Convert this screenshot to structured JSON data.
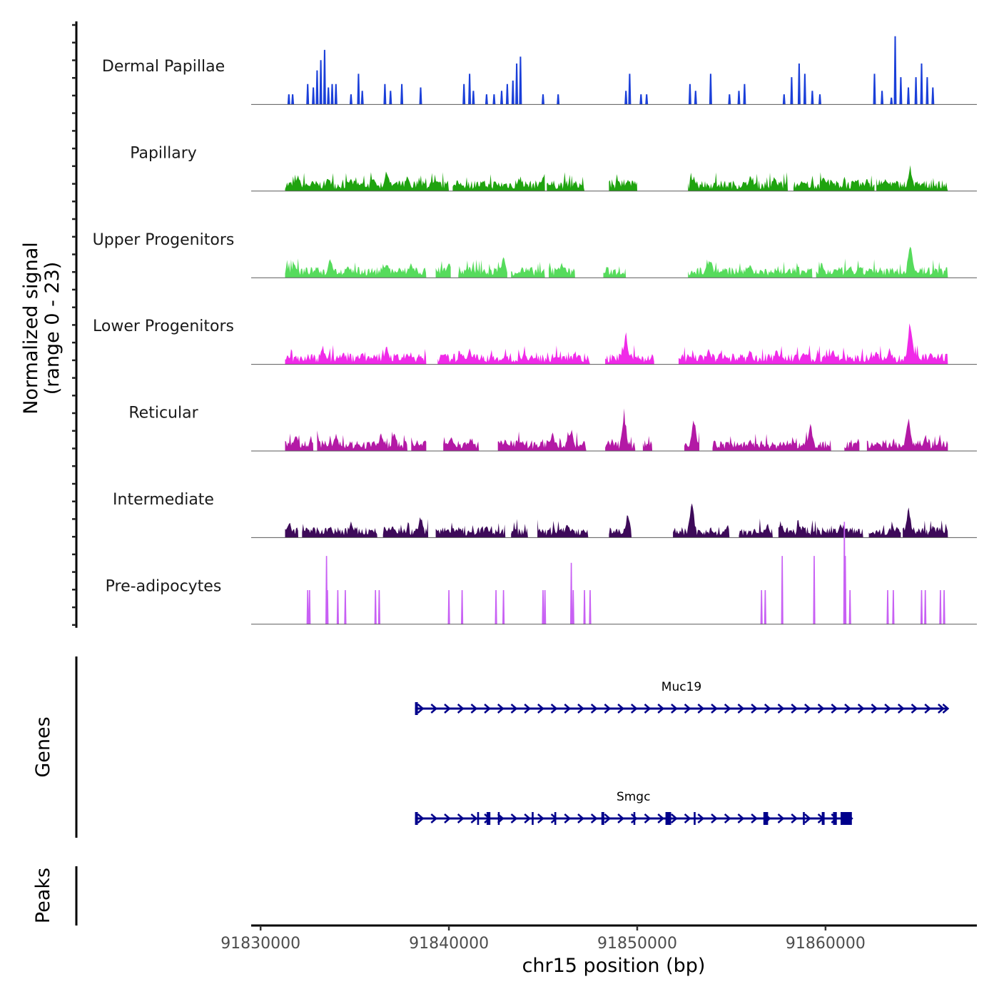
{
  "chart_data": {
    "type": "area",
    "chromosome": "chr15",
    "xlabel": "chr15 position (bp)",
    "ylabel_line1": "Normalized signal",
    "ylabel_line2": "(range 0 - 23)",
    "signal_range": [
      0,
      23
    ],
    "xlim": [
      91829500,
      91868000
    ],
    "x_ticks": [
      91830000,
      91840000,
      91850000,
      91860000
    ],
    "x_tick_labels": [
      "91830000",
      "91840000",
      "91850000",
      "91860000"
    ],
    "coverage_tracks": [
      {
        "name": "Dermal Papillae",
        "color": "#1a3fd9",
        "style": "spiky",
        "values": [
          [
            91831500,
            3
          ],
          [
            91831700,
            3
          ],
          [
            91832500,
            6
          ],
          [
            91832800,
            5
          ],
          [
            91833000,
            10
          ],
          [
            91833200,
            13
          ],
          [
            91833400,
            16
          ],
          [
            91833600,
            5
          ],
          [
            91833800,
            6
          ],
          [
            91834000,
            6
          ],
          [
            91834800,
            3
          ],
          [
            91835200,
            9
          ],
          [
            91835400,
            4
          ],
          [
            91836600,
            6
          ],
          [
            91836900,
            4
          ],
          [
            91837500,
            6
          ],
          [
            91838500,
            5
          ],
          [
            91840800,
            6
          ],
          [
            91841100,
            9
          ],
          [
            91841300,
            4
          ],
          [
            91842000,
            3
          ],
          [
            91842400,
            3
          ],
          [
            91842800,
            4
          ],
          [
            91843100,
            6
          ],
          [
            91843400,
            7
          ],
          [
            91843600,
            12
          ],
          [
            91843800,
            14
          ],
          [
            91845000,
            3
          ],
          [
            91845800,
            3
          ],
          [
            91849400,
            4
          ],
          [
            91849600,
            9
          ],
          [
            91850200,
            3
          ],
          [
            91850500,
            3
          ],
          [
            91852800,
            6
          ],
          [
            91853100,
            4
          ],
          [
            91853900,
            9
          ],
          [
            91854900,
            3
          ],
          [
            91855400,
            4
          ],
          [
            91855700,
            6
          ],
          [
            91857800,
            3
          ],
          [
            91858200,
            8
          ],
          [
            91858600,
            12
          ],
          [
            91858900,
            9
          ],
          [
            91859300,
            4
          ],
          [
            91859700,
            3
          ],
          [
            91862600,
            9
          ],
          [
            91863000,
            4
          ],
          [
            91863500,
            2
          ],
          [
            91863700,
            20
          ],
          [
            91864000,
            8
          ],
          [
            91864400,
            5
          ],
          [
            91864800,
            8
          ],
          [
            91865100,
            12
          ],
          [
            91865400,
            8
          ],
          [
            91865700,
            5
          ]
        ]
      },
      {
        "name": "Papillary",
        "color": "#1fa30f",
        "style": "dense",
        "segments": [
          [
            91831300,
            91840000
          ],
          [
            91840200,
            91845100
          ],
          [
            91845200,
            91847200
          ],
          [
            91848500,
            91850000
          ],
          [
            91852700,
            91858000
          ],
          [
            91858300,
            91862600
          ],
          [
            91862700,
            91866500
          ]
        ],
        "peaks": [
          [
            91832000,
            5
          ],
          [
            91833600,
            5
          ],
          [
            91834800,
            4
          ],
          [
            91836000,
            5
          ],
          [
            91836700,
            7
          ],
          [
            91837800,
            5
          ],
          [
            91840000,
            5
          ],
          [
            91843700,
            4
          ],
          [
            91845000,
            5
          ],
          [
            91849500,
            4
          ],
          [
            91853000,
            5
          ],
          [
            91856000,
            5
          ],
          [
            91857300,
            5
          ],
          [
            91859900,
            5
          ],
          [
            91862200,
            4
          ],
          [
            91863200,
            4
          ],
          [
            91864500,
            8
          ]
        ]
      },
      {
        "name": "Upper Progenitors",
        "color": "#56db5c",
        "style": "dense",
        "segments": [
          [
            91831300,
            91838800
          ],
          [
            91839300,
            91840100
          ],
          [
            91840500,
            91843100
          ],
          [
            91843300,
            91845100
          ],
          [
            91845300,
            91846700
          ],
          [
            91848200,
            91849400
          ],
          [
            91852700,
            91859300
          ],
          [
            91859500,
            91862000
          ],
          [
            91862000,
            91866500
          ]
        ],
        "peaks": [
          [
            91831800,
            5
          ],
          [
            91833700,
            7
          ],
          [
            91834600,
            4
          ],
          [
            91836700,
            5
          ],
          [
            91838000,
            5
          ],
          [
            91840000,
            5
          ],
          [
            91842900,
            7
          ],
          [
            91845100,
            4
          ],
          [
            91846000,
            5
          ],
          [
            91853900,
            6
          ],
          [
            91856000,
            5
          ],
          [
            91859800,
            5
          ],
          [
            91862400,
            3
          ],
          [
            91864500,
            12
          ]
        ]
      },
      {
        "name": "Lower Progenitors",
        "color": "#f02ae8",
        "style": "dense",
        "segments": [
          [
            91831300,
            91838800
          ],
          [
            91839400,
            91847500
          ],
          [
            91848300,
            91850900
          ],
          [
            91852200,
            91866500
          ]
        ],
        "peaks": [
          [
            91833300,
            6
          ],
          [
            91834400,
            4
          ],
          [
            91835400,
            4
          ],
          [
            91836700,
            6
          ],
          [
            91838500,
            3
          ],
          [
            91841100,
            5
          ],
          [
            91843000,
            3
          ],
          [
            91844000,
            4
          ],
          [
            91846700,
            3
          ],
          [
            91849400,
            10
          ],
          [
            91853800,
            5
          ],
          [
            91856000,
            5
          ],
          [
            91857400,
            5
          ],
          [
            91858800,
            4
          ],
          [
            91860400,
            5
          ],
          [
            91862700,
            4
          ],
          [
            91863400,
            5
          ],
          [
            91864500,
            15
          ],
          [
            91865600,
            4
          ]
        ]
      },
      {
        "name": "Reticular",
        "color": "#b319a5",
        "style": "dense",
        "segments": [
          [
            91831300,
            91832800
          ],
          [
            91833000,
            91837800
          ],
          [
            91838000,
            91838800
          ],
          [
            91839700,
            91841600
          ],
          [
            91842600,
            91847300
          ],
          [
            91848300,
            91849900
          ],
          [
            91850300,
            91850800
          ],
          [
            91852500,
            91853300
          ],
          [
            91854000,
            91860300
          ],
          [
            91861000,
            91861800
          ],
          [
            91862200,
            91866500
          ]
        ],
        "peaks": [
          [
            91831900,
            6
          ],
          [
            91833000,
            6
          ],
          [
            91834000,
            6
          ],
          [
            91836400,
            6
          ],
          [
            91837100,
            6
          ],
          [
            91838000,
            4
          ],
          [
            91840100,
            5
          ],
          [
            91843000,
            4
          ],
          [
            91845500,
            6
          ],
          [
            91846500,
            7
          ],
          [
            91849300,
            13
          ],
          [
            91853000,
            11
          ],
          [
            91856000,
            4
          ],
          [
            91859200,
            9
          ],
          [
            91860800,
            3
          ],
          [
            91864400,
            12
          ],
          [
            91865300,
            5
          ]
        ]
      },
      {
        "name": "Intermediate",
        "color": "#3d0a59",
        "style": "dense",
        "segments": [
          [
            91831300,
            91832000
          ],
          [
            91832200,
            91836200
          ],
          [
            91836500,
            91838900
          ],
          [
            91839300,
            91843000
          ],
          [
            91843300,
            91844200
          ],
          [
            91844700,
            91847400
          ],
          [
            91848500,
            91849700
          ],
          [
            91851900,
            91854900
          ],
          [
            91855400,
            91857200
          ],
          [
            91857500,
            91862000
          ],
          [
            91862300,
            91864000
          ],
          [
            91864100,
            91866500
          ]
        ],
        "peaks": [
          [
            91831500,
            5
          ],
          [
            91833700,
            4
          ],
          [
            91834800,
            5
          ],
          [
            91836800,
            3
          ],
          [
            91838500,
            7
          ],
          [
            91840400,
            3
          ],
          [
            91842000,
            4
          ],
          [
            91844400,
            3
          ],
          [
            91846300,
            5
          ],
          [
            91849500,
            8
          ],
          [
            91852900,
            12
          ],
          [
            91854800,
            4
          ],
          [
            91856900,
            4
          ],
          [
            91857600,
            5
          ],
          [
            91858800,
            4
          ],
          [
            91860800,
            5
          ],
          [
            91863800,
            4
          ],
          [
            91864400,
            10
          ],
          [
            91865700,
            4
          ]
        ]
      },
      {
        "name": "Pre-adipocytes",
        "color": "#c860f4",
        "style": "sparse",
        "values": [
          [
            91832500,
            10
          ],
          [
            91832600,
            10
          ],
          [
            91833500,
            20
          ],
          [
            91833550,
            10
          ],
          [
            91834100,
            10
          ],
          [
            91834500,
            10
          ],
          [
            91836100,
            10
          ],
          [
            91836300,
            10
          ],
          [
            91840000,
            10
          ],
          [
            91840700,
            10
          ],
          [
            91842500,
            10
          ],
          [
            91842900,
            10
          ],
          [
            91845000,
            10
          ],
          [
            91845100,
            10
          ],
          [
            91846500,
            18
          ],
          [
            91846600,
            10
          ],
          [
            91847200,
            10
          ],
          [
            91847500,
            10
          ],
          [
            91856600,
            10
          ],
          [
            91856800,
            10
          ],
          [
            91857700,
            20
          ],
          [
            91859400,
            20
          ],
          [
            91861000,
            30
          ],
          [
            91861050,
            20
          ],
          [
            91861300,
            10
          ],
          [
            91863300,
            10
          ],
          [
            91863600,
            10
          ],
          [
            91865100,
            10
          ],
          [
            91865300,
            10
          ],
          [
            91866100,
            10
          ],
          [
            91866300,
            10
          ]
        ]
      }
    ],
    "genes_panel_label": "Genes",
    "peaks_panel_label": "Peaks",
    "genes": [
      {
        "name": "Muc19",
        "start": 91838200,
        "end": 91866500,
        "strand": "+",
        "exons": [
          [
            91838200,
            91838350
          ]
        ]
      },
      {
        "name": "Smgc",
        "start": 91838200,
        "end": 91861400,
        "strand": "+",
        "exons": [
          [
            91838200,
            91838350
          ],
          [
            91841500,
            91841600
          ],
          [
            91842000,
            91842200
          ],
          [
            91842600,
            91842700
          ],
          [
            91844400,
            91844500
          ],
          [
            91845600,
            91845700
          ],
          [
            91848100,
            91848250
          ],
          [
            91849800,
            91849900
          ],
          [
            91851500,
            91851800
          ],
          [
            91853000,
            91853100
          ],
          [
            91856700,
            91856950
          ],
          [
            91858800,
            91858900
          ],
          [
            91859800,
            91859950
          ],
          [
            91860400,
            91860600
          ],
          [
            91860800,
            91861400
          ]
        ]
      }
    ],
    "peaks": []
  }
}
